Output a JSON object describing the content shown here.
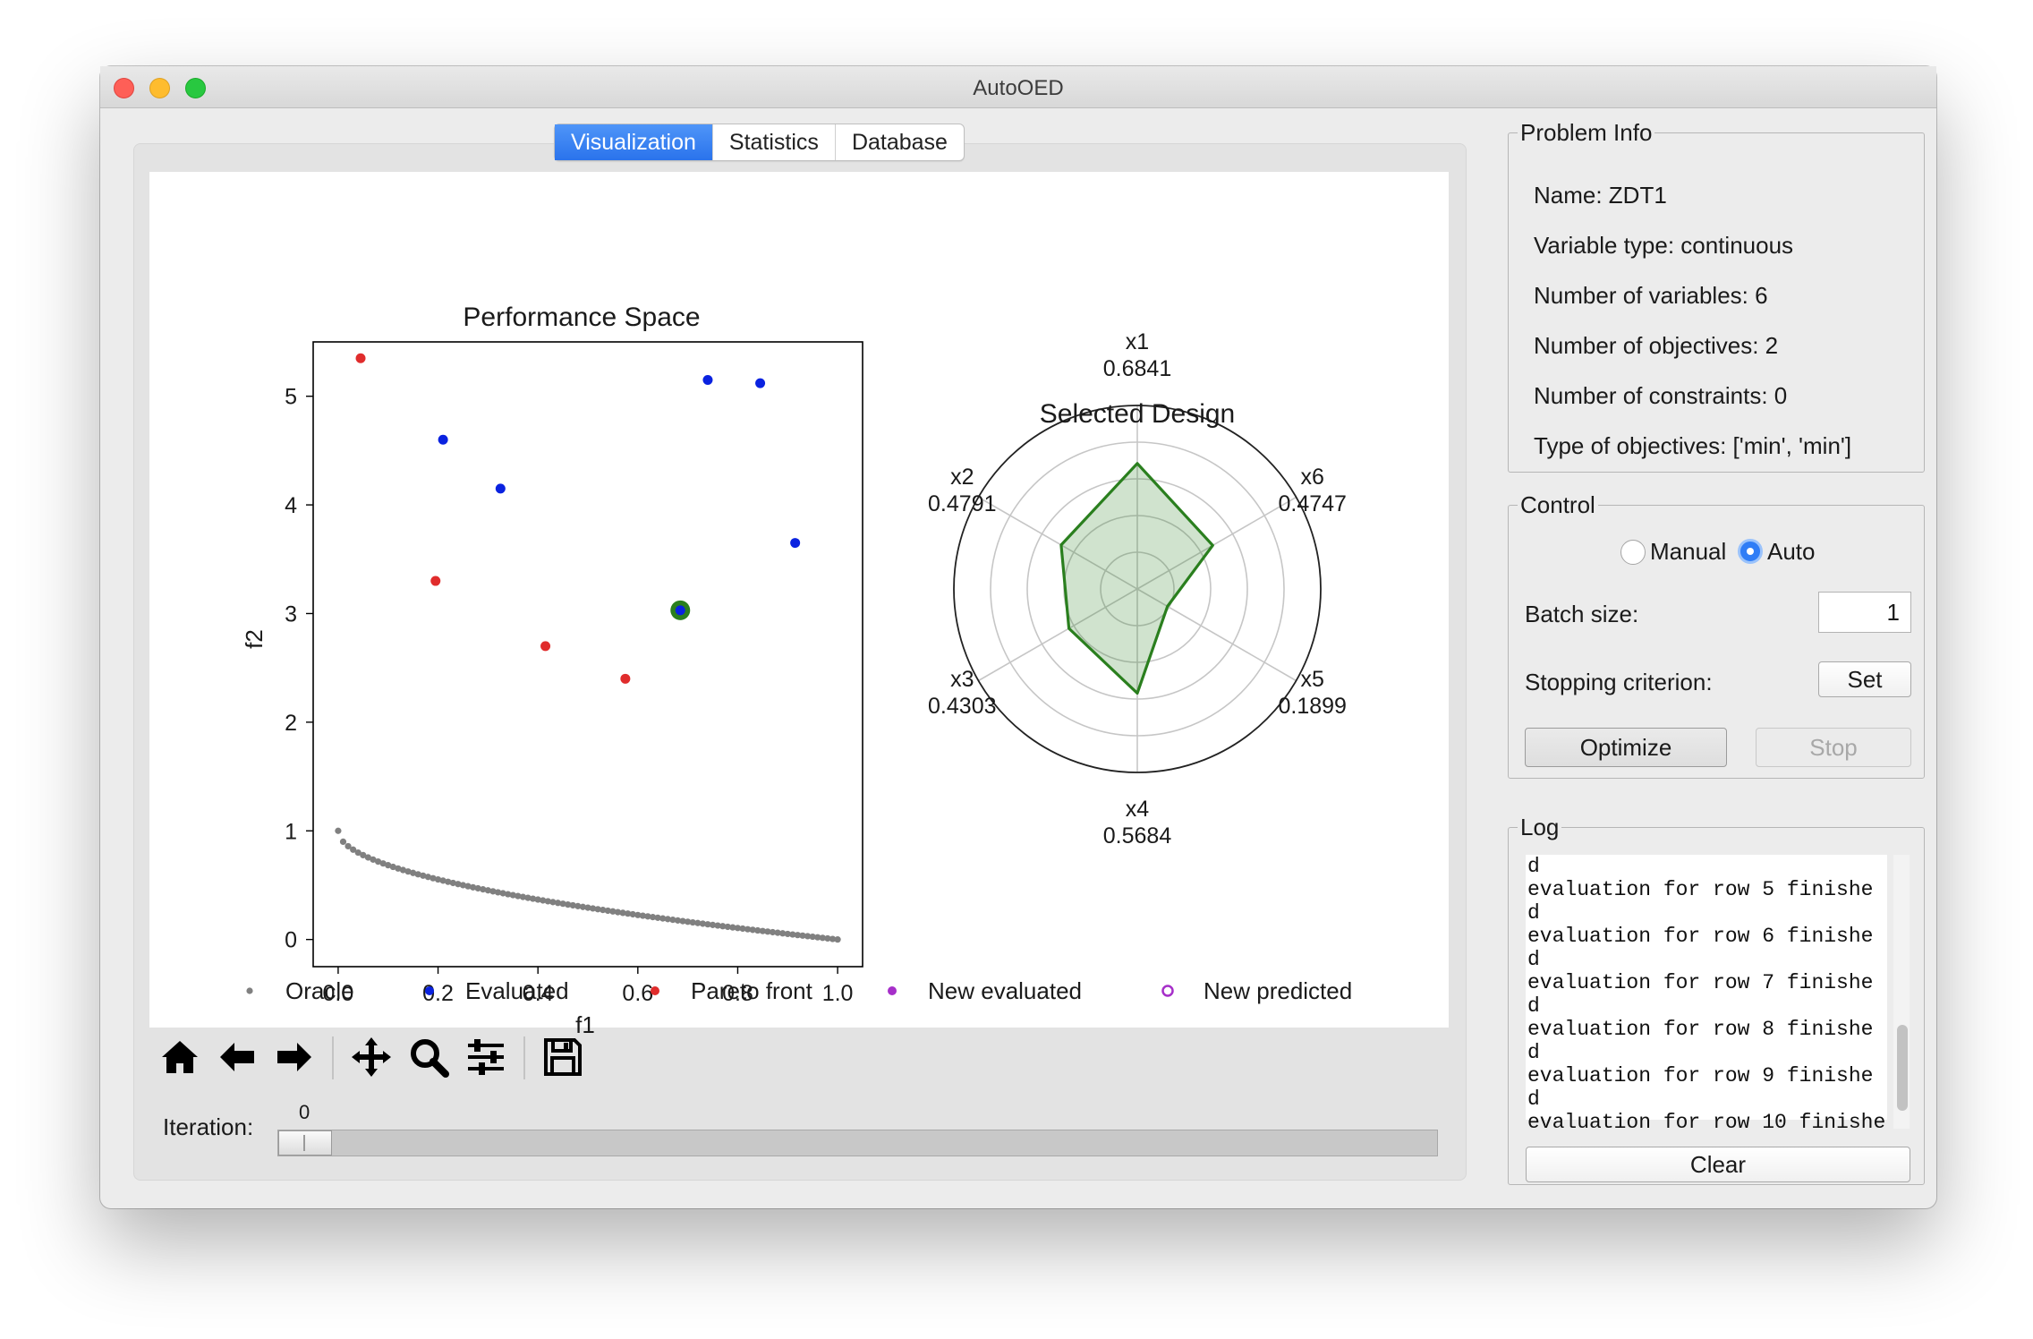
{
  "window": {
    "title": "AutoOED"
  },
  "tabs": [
    {
      "label": "Visualization",
      "active": true
    },
    {
      "label": "Statistics",
      "active": false
    },
    {
      "label": "Database",
      "active": false
    }
  ],
  "performance_plot": {
    "title": "Performance Space",
    "xlabel": "f1",
    "ylabel": "f2"
  },
  "radar_plot": {
    "title": "Selected Design",
    "axes": [
      {
        "name": "x1",
        "value": "0.6841"
      },
      {
        "name": "x6",
        "value": "0.4747"
      },
      {
        "name": "x5",
        "value": "0.1899"
      },
      {
        "name": "x4",
        "value": "0.5684"
      },
      {
        "name": "x3",
        "value": "0.4303"
      },
      {
        "name": "x2",
        "value": "0.4791"
      }
    ]
  },
  "legend": [
    {
      "label": "Oracle",
      "color": "#808080",
      "marker": "dot"
    },
    {
      "label": "Evaluated",
      "color": "#0a22e0",
      "marker": "dot"
    },
    {
      "label": "Pareto front",
      "color": "#e02c2c",
      "marker": "dot"
    },
    {
      "label": "New evaluated",
      "color": "#a62fc9",
      "marker": "dot"
    },
    {
      "label": "New predicted",
      "color": "#a62fc9",
      "marker": "ring"
    }
  ],
  "chart_data": [
    {
      "type": "scatter",
      "title": "Performance Space",
      "xlabel": "f1",
      "ylabel": "f2",
      "xlim": [
        -0.05,
        1.05
      ],
      "ylim": [
        -0.25,
        5.5
      ],
      "xticks": [
        "0.0",
        "0.2",
        "0.4",
        "0.6",
        "0.8",
        "1.0"
      ],
      "yticks": [
        "0",
        "1",
        "2",
        "3",
        "4",
        "5"
      ],
      "legend_position": "bottom",
      "series": [
        {
          "name": "Oracle",
          "color": "#808080",
          "curve": "1 - sqrt(x)",
          "x_range": [
            0,
            1
          ]
        },
        {
          "name": "Evaluated",
          "color": "#0a22e0",
          "x": [
            0.21,
            0.325,
            0.74,
            0.845,
            0.915
          ],
          "y": [
            4.6,
            4.15,
            5.15,
            5.12,
            3.65
          ]
        },
        {
          "name": "Pareto front",
          "color": "#e02c2c",
          "x": [
            0.045,
            0.195,
            0.415,
            0.575
          ],
          "y": [
            5.35,
            3.3,
            2.7,
            2.4
          ]
        },
        {
          "name": "New evaluated",
          "color": "#a62fc9",
          "x": [],
          "y": []
        },
        {
          "name": "New predicted",
          "color": "#a62fc9",
          "x": [],
          "y": []
        }
      ],
      "selected_point": {
        "x": 0.685,
        "y": 3.03,
        "color": "#2a7f1e"
      }
    },
    {
      "type": "radar",
      "title": "Selected Design",
      "axes": [
        "x1",
        "x6",
        "x5",
        "x4",
        "x3",
        "x2"
      ],
      "values": [
        0.6841,
        0.4747,
        0.1899,
        0.5684,
        0.4303,
        0.4791
      ],
      "rlim": [
        0,
        1
      ],
      "color": "#2a7f1e"
    }
  ],
  "toolbar": {
    "buttons": [
      "home-icon",
      "back-arrow-icon",
      "forward-arrow-icon",
      "pan-icon",
      "zoom-icon",
      "configure-icon",
      "save-icon"
    ]
  },
  "iteration": {
    "label": "Iteration:",
    "value": "0"
  },
  "problem_info": {
    "title": "Problem Info",
    "lines": [
      "Name: ZDT1",
      "Variable type: continuous",
      "Number of variables: 6",
      "Number of objectives: 2",
      "Number of constraints: 0",
      "Type of objectives: ['min', 'min']"
    ]
  },
  "control": {
    "title": "Control",
    "manual_label": "Manual",
    "auto_label": "Auto",
    "selected_mode": "Auto",
    "batch_size_label": "Batch size:",
    "batch_size_value": "1",
    "stopping_label": "Stopping criterion:",
    "set_label": "Set",
    "optimize_label": "Optimize",
    "stop_label": "Stop"
  },
  "log": {
    "title": "Log",
    "lines": [
      "d",
      "evaluation for row 5 finishe",
      "d",
      "evaluation for row 6 finishe",
      "d",
      "evaluation for row 7 finishe",
      "d",
      "evaluation for row 8 finishe",
      "d",
      "evaluation for row 9 finishe",
      "d",
      "evaluation for row 10 finishe"
    ],
    "clear_label": "Clear"
  }
}
